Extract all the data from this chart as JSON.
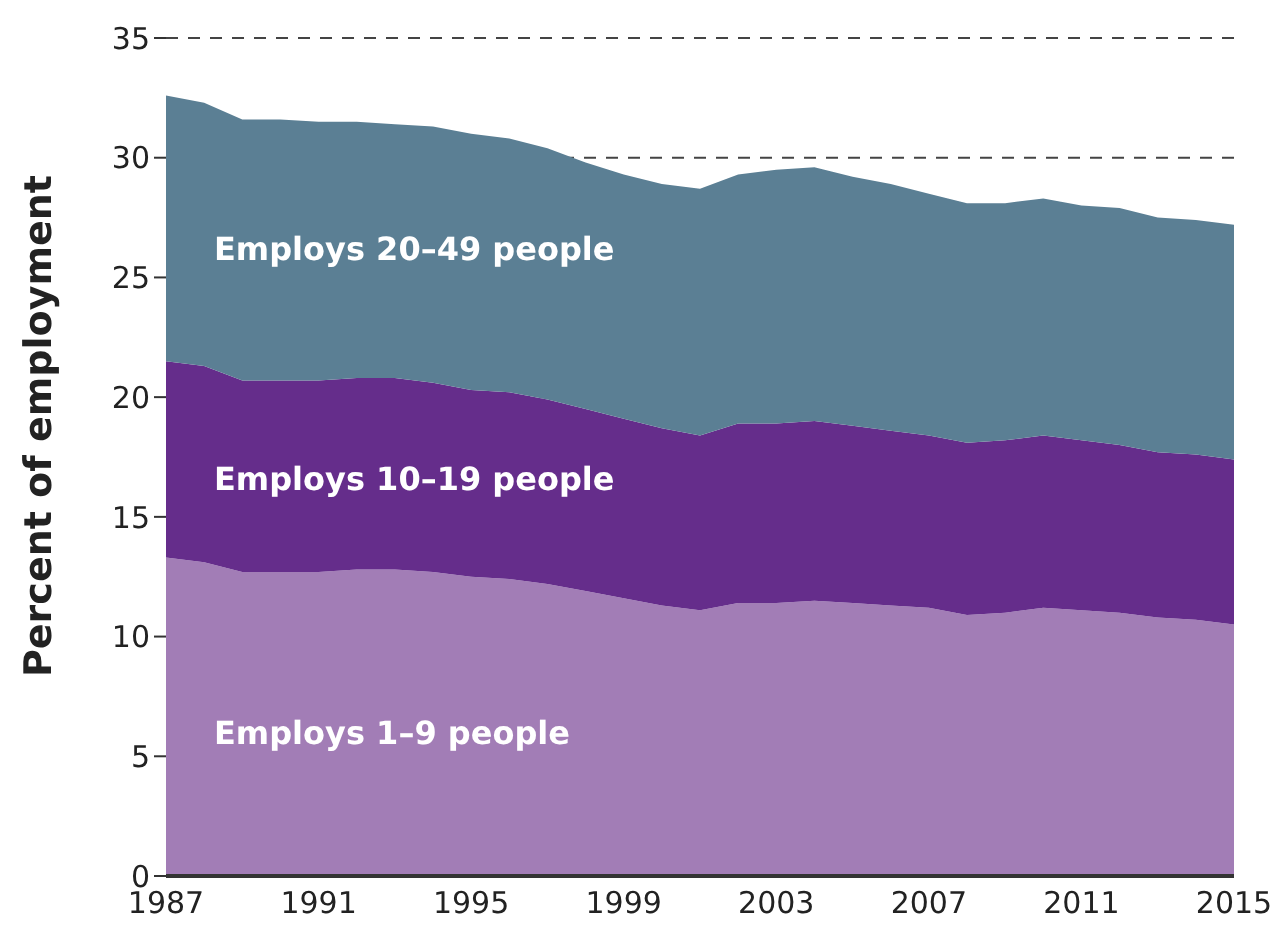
{
  "chart_data": {
    "type": "area",
    "stacked": true,
    "ylabel": "Percent of employment",
    "x": [
      1987,
      1988,
      1989,
      1990,
      1991,
      1992,
      1993,
      1994,
      1995,
      1996,
      1997,
      1998,
      1999,
      2000,
      2001,
      2002,
      2003,
      2004,
      2005,
      2006,
      2007,
      2008,
      2009,
      2010,
      2011,
      2012,
      2013,
      2014,
      2015
    ],
    "series": [
      {
        "name": "Employs 1–9 people",
        "color": "#a27db6",
        "values": [
          13.3,
          13.1,
          12.7,
          12.7,
          12.7,
          12.8,
          12.8,
          12.7,
          12.5,
          12.4,
          12.2,
          11.9,
          11.6,
          11.3,
          11.1,
          11.4,
          11.4,
          11.5,
          11.4,
          11.3,
          11.2,
          10.9,
          11.0,
          11.2,
          11.1,
          11.0,
          10.8,
          10.7,
          10.5
        ]
      },
      {
        "name": "Employs 10–19 people",
        "color": "#652d8b",
        "values": [
          8.2,
          8.2,
          8.0,
          8.0,
          8.0,
          8.0,
          8.0,
          7.9,
          7.8,
          7.8,
          7.7,
          7.6,
          7.5,
          7.4,
          7.3,
          7.5,
          7.5,
          7.5,
          7.4,
          7.3,
          7.2,
          7.2,
          7.2,
          7.2,
          7.1,
          7.0,
          6.9,
          6.9,
          6.9
        ]
      },
      {
        "name": "Employs 20–49 people",
        "color": "#5b7f94",
        "values": [
          11.1,
          11.0,
          10.9,
          10.9,
          10.8,
          10.7,
          10.6,
          10.7,
          10.7,
          10.6,
          10.5,
          10.3,
          10.2,
          10.2,
          10.3,
          10.4,
          10.6,
          10.6,
          10.4,
          10.3,
          10.1,
          10.0,
          9.9,
          9.9,
          9.8,
          9.9,
          9.8,
          9.8,
          9.8
        ]
      }
    ],
    "xlim": [
      1987,
      2015
    ],
    "xticks": [
      1987,
      1991,
      1995,
      1999,
      2003,
      2007,
      2011,
      2015
    ],
    "ylim": [
      0,
      35
    ],
    "yticks": [
      0,
      5,
      10,
      15,
      20,
      25,
      30,
      35
    ],
    "grid": "y"
  }
}
